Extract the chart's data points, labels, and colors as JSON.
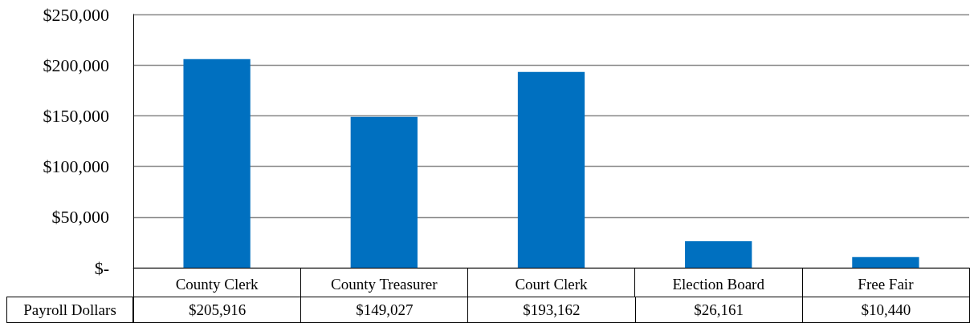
{
  "chart_data": {
    "type": "bar",
    "categories": [
      "County Clerk",
      "County Treasurer",
      "Court Clerk",
      "Election Board",
      "Free Fair"
    ],
    "series": [
      {
        "name": "Payroll Dollars",
        "color": "#0070c0",
        "values": [
          205916,
          149027,
          193162,
          26161,
          10440
        ],
        "value_labels": [
          "$205,916",
          "$149,027",
          "$193,162",
          "$26,161",
          "$10,440"
        ]
      }
    ],
    "ylim": [
      0,
      250000
    ],
    "yticks": [
      {
        "value": 0,
        "label": "$-"
      },
      {
        "value": 50000,
        "label": "$50,000"
      },
      {
        "value": 100000,
        "label": "$100,000"
      },
      {
        "value": 150000,
        "label": "$150,000"
      },
      {
        "value": 200000,
        "label": "$200,000"
      },
      {
        "value": 250000,
        "label": "$250,000"
      }
    ],
    "grid": "y",
    "legend": false
  }
}
